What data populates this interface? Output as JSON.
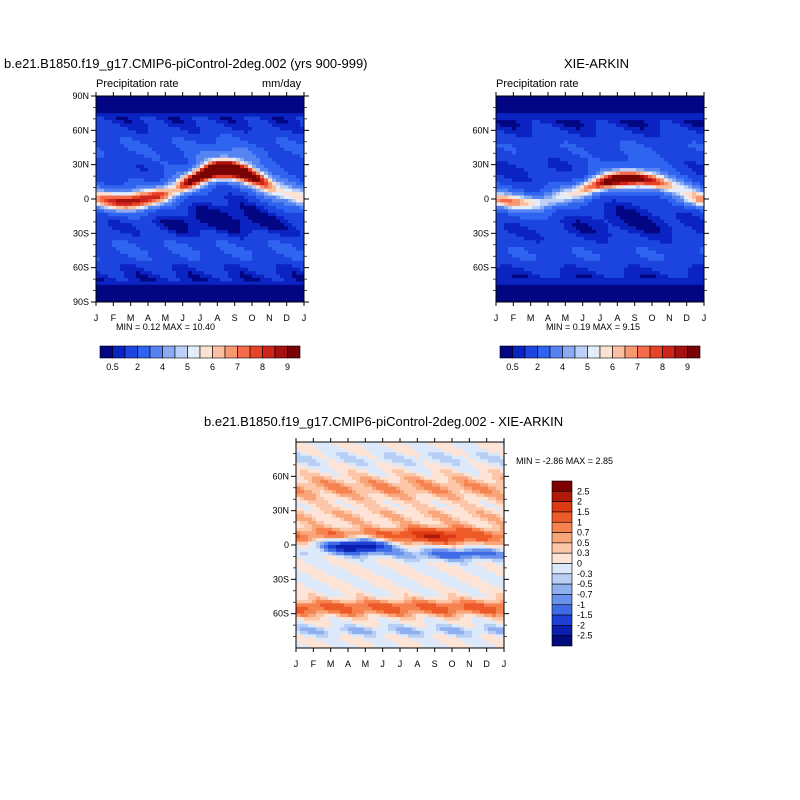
{
  "chart_data": [
    {
      "type": "heatmap",
      "title": "b.e21.B1850.f19_g17.CMIP6-piControl-2deg.002 (yrs 900-999)",
      "left_label": "Precipitation rate",
      "right_label": "mm/day",
      "x_tick_labels": [
        "J",
        "F",
        "M",
        "A",
        "M",
        "J",
        "J",
        "A",
        "S",
        "O",
        "N",
        "D",
        "J"
      ],
      "y_tick_labels": [
        "90N",
        "60N",
        "30N",
        "0",
        "30S",
        "60S",
        "90S"
      ],
      "ylim": [
        -90,
        90
      ],
      "minmax": "MIN =   0.12 MAX =  10.40",
      "colorbar_labels": [
        "0.5",
        "2",
        "4",
        "5",
        "6",
        "7",
        "8",
        "9"
      ],
      "colors": [
        "#030682",
        "#0a23c2",
        "#1c45e0",
        "#2f64f0",
        "#5584f2",
        "#8aaaf2",
        "#bcd0f7",
        "#e3edfc",
        "#fde2d2",
        "#fbbf9e",
        "#f89871",
        "#f36b48",
        "#e84226",
        "#d0241a",
        "#a6110f",
        "#7a0403"
      ]
    },
    {
      "type": "heatmap",
      "title": "XIE-ARKIN",
      "left_label": "Precipitation rate",
      "x_tick_labels": [
        "J",
        "F",
        "M",
        "A",
        "M",
        "J",
        "J",
        "A",
        "S",
        "O",
        "N",
        "D",
        "J"
      ],
      "y_tick_labels": [
        "60N",
        "30N",
        "0",
        "30S",
        "60S"
      ],
      "ylim": [
        -90,
        90
      ],
      "minmax": "MIN =   0.19 MAX =   9.15",
      "colorbar_labels": [
        "0.5",
        "2",
        "4",
        "5",
        "6",
        "7",
        "8",
        "9"
      ]
    },
    {
      "type": "heatmap",
      "title": "b.e21.B1850.f19_g17.CMIP6-piControl-2deg.002 - XIE-ARKIN",
      "x_tick_labels": [
        "J",
        "F",
        "M",
        "A",
        "M",
        "J",
        "J",
        "A",
        "S",
        "O",
        "N",
        "D",
        "J"
      ],
      "y_tick_labels": [
        "60N",
        "30N",
        "0",
        "30S",
        "60S"
      ],
      "ylim": [
        -90,
        90
      ],
      "minmax": "MIN =  -2.86 MAX =   2.85",
      "colorbar_labels": [
        "2.5",
        "2",
        "1.5",
        "1",
        "0.7",
        "0.5",
        "0.3",
        "0",
        "-0.3",
        "-0.5",
        "-0.7",
        "-1",
        "-1.5",
        "-2",
        "-2.5"
      ],
      "colors": [
        "#7d0000",
        "#b01a08",
        "#dc3a13",
        "#ee5a28",
        "#f5824f",
        "#f9a57a",
        "#fcc6a8",
        "#fde4d6",
        "#dce9fa",
        "#b7cef5",
        "#8fb0f0",
        "#6a92ec",
        "#3f6be6",
        "#1d3fd6",
        "#0a1fae",
        "#020b7c"
      ]
    }
  ]
}
